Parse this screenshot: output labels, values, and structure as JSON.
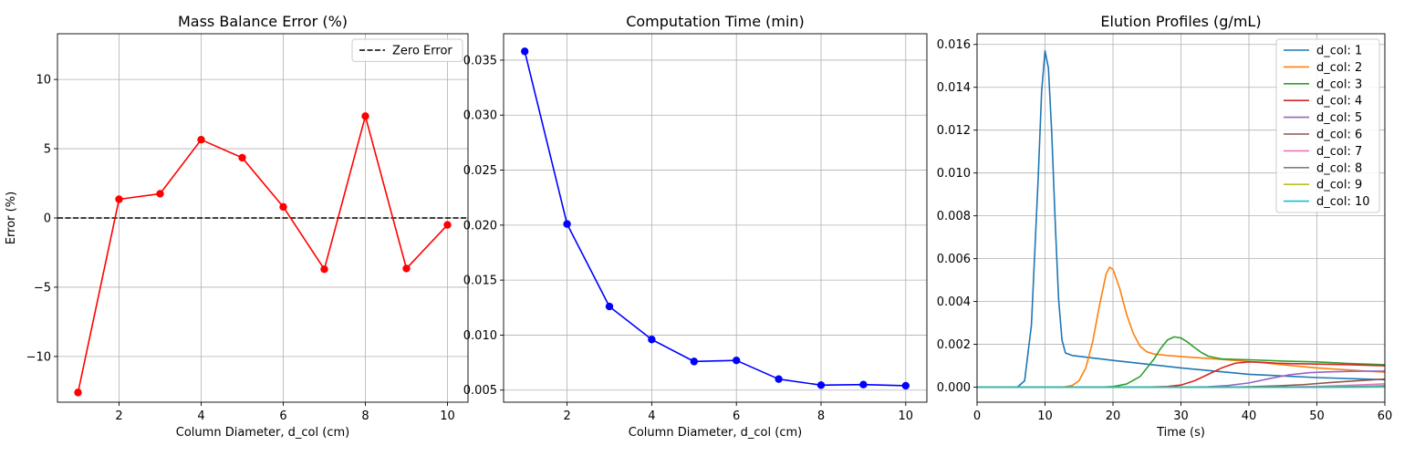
{
  "chart_data": [
    {
      "type": "line",
      "title": "Mass Balance Error (%)",
      "xlabel": "Column Diameter, d_col (cm)",
      "ylabel": "Error (%)",
      "xlim": [
        0.5,
        10.5
      ],
      "ylim": [
        -13.3,
        13.3
      ],
      "xticks": [
        2,
        4,
        6,
        8,
        10
      ],
      "xtick_labels": [
        "2",
        "4",
        "6",
        "8",
        "10"
      ],
      "yticks": [
        -10,
        -5,
        0,
        5,
        10
      ],
      "ytick_labels": [
        "−10",
        "−5",
        "0",
        "5",
        "10"
      ],
      "grid": true,
      "legend": "top-right",
      "series": [
        {
          "color": "#ff0000",
          "marker": "circle",
          "x": [
            1,
            2,
            3,
            4,
            5,
            6,
            7,
            8,
            9,
            10
          ],
          "y": [
            -12.6,
            1.35,
            1.75,
            5.65,
            4.35,
            0.8,
            -3.7,
            7.35,
            -3.65,
            -0.5
          ]
        }
      ],
      "reference_lines": [
        {
          "name": "Zero Error",
          "y": 0,
          "color": "#000000",
          "style": "dashed"
        }
      ]
    },
    {
      "type": "line",
      "title": "Computation Time (min)",
      "xlabel": "Column Diameter, d_col (cm)",
      "ylabel": "",
      "xlim": [
        0.5,
        10.5
      ],
      "ylim": [
        0.0039,
        0.0374
      ],
      "xticks": [
        2,
        4,
        6,
        8,
        10
      ],
      "xtick_labels": [
        "2",
        "4",
        "6",
        "8",
        "10"
      ],
      "yticks": [
        0.005,
        0.01,
        0.015,
        0.02,
        0.025,
        0.03,
        0.035
      ],
      "ytick_labels": [
        "0.005",
        "0.010",
        "0.015",
        "0.020",
        "0.025",
        "0.030",
        "0.035"
      ],
      "grid": true,
      "series": [
        {
          "color": "#0000ff",
          "marker": "circle",
          "x": [
            1,
            2,
            3,
            4,
            5,
            6,
            7,
            8,
            9,
            10
          ],
          "y": [
            0.0358,
            0.0201,
            0.0126,
            0.0096,
            0.0076,
            0.0077,
            0.006,
            0.00545,
            0.0055,
            0.0054
          ]
        }
      ]
    },
    {
      "type": "line",
      "title": "Elution Profiles (g/mL)",
      "xlabel": "Time (s)",
      "ylabel": "",
      "xlim": [
        0,
        60
      ],
      "ylim": [
        -0.0007,
        0.0165
      ],
      "xticks": [
        0,
        10,
        20,
        30,
        40,
        50,
        60
      ],
      "xtick_labels": [
        "0",
        "10",
        "20",
        "30",
        "40",
        "50",
        "60"
      ],
      "yticks": [
        0,
        0.002,
        0.004,
        0.006,
        0.008,
        0.01,
        0.012,
        0.014,
        0.016
      ],
      "ytick_labels": [
        "0.000",
        "0.002",
        "0.004",
        "0.006",
        "0.008",
        "0.010",
        "0.012",
        "0.014",
        "0.016"
      ],
      "grid": true,
      "legend": "top-right",
      "series": [
        {
          "name": "d_col: 1",
          "color": "#1f77b4",
          "x": [
            0,
            5,
            6,
            7,
            8,
            9,
            9.5,
            10,
            10.5,
            11,
            11.5,
            12,
            12.5,
            13,
            14,
            20,
            30,
            40,
            50,
            60
          ],
          "y": [
            0,
            0,
            2e-05,
            0.0003,
            0.0029,
            0.0098,
            0.0138,
            0.0157,
            0.0149,
            0.0118,
            0.0077,
            0.0041,
            0.0022,
            0.0016,
            0.00148,
            0.00125,
            0.0009,
            0.0006,
            0.00045,
            0.00035
          ]
        },
        {
          "name": "d_col: 2",
          "color": "#ff7f0e",
          "x": [
            0,
            12,
            13,
            14,
            15,
            16,
            17,
            18,
            19,
            19.5,
            20,
            21,
            22,
            23,
            24,
            25,
            26,
            28,
            30,
            35,
            40,
            50,
            60
          ],
          "y": [
            0,
            0,
            2e-05,
            8e-05,
            0.0003,
            0.0009,
            0.0021,
            0.0038,
            0.0053,
            0.0056,
            0.0055,
            0.0046,
            0.0034,
            0.0025,
            0.0019,
            0.00165,
            0.00155,
            0.00148,
            0.00143,
            0.00132,
            0.0012,
            0.0009,
            0.0007
          ]
        },
        {
          "name": "d_col: 3",
          "color": "#2ca02c",
          "x": [
            0,
            18,
            20,
            22,
            24,
            26,
            27,
            28,
            29,
            30,
            31,
            32,
            33,
            34,
            35,
            36,
            38,
            40,
            45,
            50,
            55,
            60
          ],
          "y": [
            0,
            0,
            3e-05,
            0.00015,
            0.0005,
            0.0013,
            0.0018,
            0.0022,
            0.00235,
            0.0023,
            0.0021,
            0.00185,
            0.00162,
            0.00145,
            0.00138,
            0.00132,
            0.0013,
            0.00128,
            0.00122,
            0.00118,
            0.0011,
            0.00105
          ]
        },
        {
          "name": "d_col: 4",
          "color": "#d62728",
          "x": [
            0,
            24,
            28,
            30,
            32,
            34,
            36,
            38,
            40,
            42,
            44,
            46,
            50,
            55,
            60
          ],
          "y": [
            0,
            0,
            3e-05,
            0.0001,
            0.0003,
            0.0006,
            0.0009,
            0.00112,
            0.00118,
            0.00116,
            0.00112,
            0.0011,
            0.00108,
            0.00105,
            0.001
          ]
        },
        {
          "name": "d_col: 5",
          "color": "#9467bd",
          "x": [
            0,
            30,
            34,
            37,
            40,
            43,
            46,
            49,
            52,
            55,
            58,
            60
          ],
          "y": [
            0,
            0,
            2e-05,
            8e-05,
            0.0002,
            0.0004,
            0.00058,
            0.00068,
            0.00072,
            0.00074,
            0.00075,
            0.00075
          ]
        },
        {
          "name": "d_col: 6",
          "color": "#8c564b",
          "x": [
            0,
            36,
            40,
            44,
            48,
            52,
            55,
            58,
            60
          ],
          "y": [
            0,
            0,
            2e-05,
            6e-05,
            0.00012,
            0.00022,
            0.00028,
            0.00034,
            0.00038
          ]
        },
        {
          "name": "d_col: 7",
          "color": "#e377c2",
          "x": [
            0,
            40,
            45,
            50,
            55,
            58,
            60
          ],
          "y": [
            0,
            0,
            1e-05,
            4e-05,
            9e-05,
            0.00013,
            0.00016
          ]
        },
        {
          "name": "d_col: 8",
          "color": "#7f7f7f",
          "x": [
            0,
            46,
            50,
            55,
            58,
            60
          ],
          "y": [
            0,
            0,
            1e-05,
            3e-05,
            5e-05,
            7e-05
          ]
        },
        {
          "name": "d_col: 9",
          "color": "#bcbd22",
          "x": [
            0,
            50,
            55,
            60
          ],
          "y": [
            0,
            0,
            1e-05,
            3e-05
          ]
        },
        {
          "name": "d_col: 10",
          "color": "#17becf",
          "x": [
            0,
            54,
            60
          ],
          "y": [
            0,
            0,
            1e-05
          ]
        }
      ]
    }
  ]
}
